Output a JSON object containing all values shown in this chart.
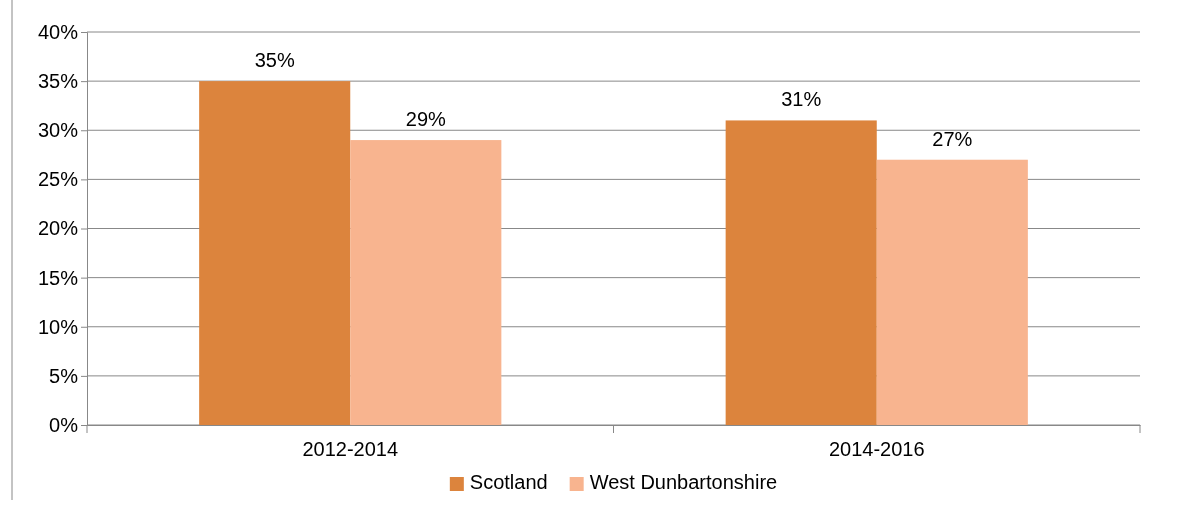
{
  "chart_data": {
    "type": "bar",
    "categories": [
      "2012-2014",
      "2014-2016"
    ],
    "series": [
      {
        "name": "Scotland",
        "color": "#dc843d",
        "values": [
          35,
          31
        ],
        "value_labels": [
          "35%",
          "31%"
        ]
      },
      {
        "name": "West Dunbartonshire",
        "color": "#f8b48f",
        "values": [
          29,
          27
        ],
        "value_labels": [
          "29%",
          "27%"
        ]
      }
    ],
    "ylim": [
      0,
      40
    ],
    "yticks": [
      {
        "value": 0,
        "label": "0%"
      },
      {
        "value": 5,
        "label": "5%"
      },
      {
        "value": 10,
        "label": "10%"
      },
      {
        "value": 15,
        "label": "15%"
      },
      {
        "value": 20,
        "label": "20%"
      },
      {
        "value": 25,
        "label": "25%"
      },
      {
        "value": 30,
        "label": "30%"
      },
      {
        "value": 35,
        "label": "35%"
      },
      {
        "value": 40,
        "label": "40%"
      }
    ],
    "grid": "y",
    "legend": "bottom"
  }
}
